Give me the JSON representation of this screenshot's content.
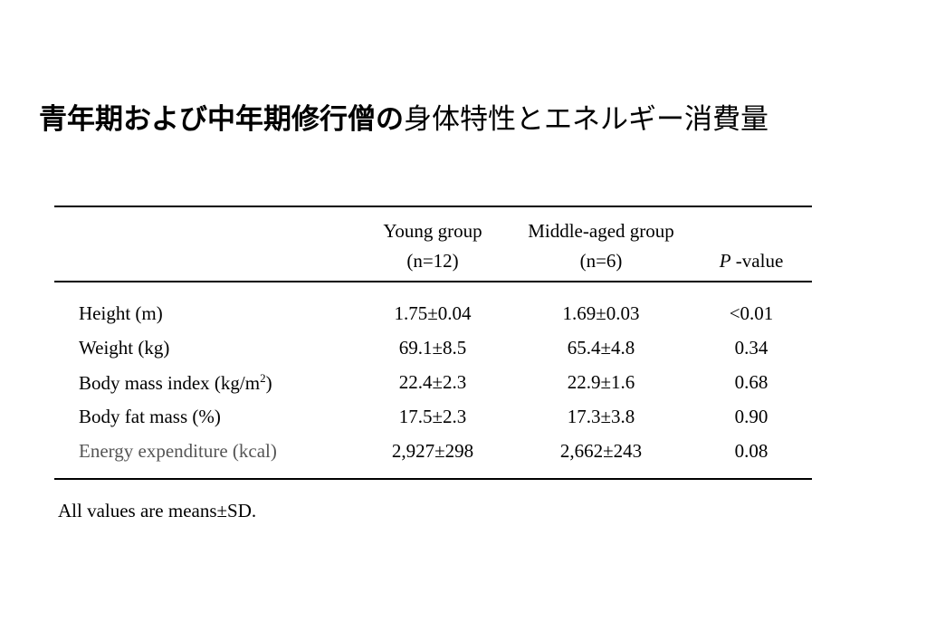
{
  "title": {
    "bold": "青年期および中年期修行僧の",
    "normal": "身体特性とエネルギー消費量"
  },
  "table": {
    "header": {
      "young_name": "Young group",
      "young_n": "(n=12)",
      "middle_name": "Middle-aged group",
      "middle_n": "(n=6)",
      "p_italic": "P",
      "p_suffix": " -value"
    },
    "rows": [
      {
        "label": "Height (m)",
        "young": "1.75±0.04",
        "middle": "1.69±0.03",
        "p": "<0.01"
      },
      {
        "label": "Weight (kg)",
        "young": "69.1±8.5",
        "middle": "65.4±4.8",
        "p": "0.34"
      },
      {
        "label_prefix": "Body mass index (kg/m",
        "label_sup": "2",
        "label_suffix": ")",
        "young": "22.4±2.3",
        "middle": "22.9±1.6",
        "p": "0.68"
      },
      {
        "label": "Body fat mass (%)",
        "young": "17.5±2.3",
        "middle": "17.3±3.8",
        "p": "0.90"
      },
      {
        "label": "Energy expenditure (kcal)",
        "young": "2,927±298",
        "middle": "2,662±243",
        "p": "0.08"
      }
    ]
  },
  "footnote": "All values are means±SD."
}
